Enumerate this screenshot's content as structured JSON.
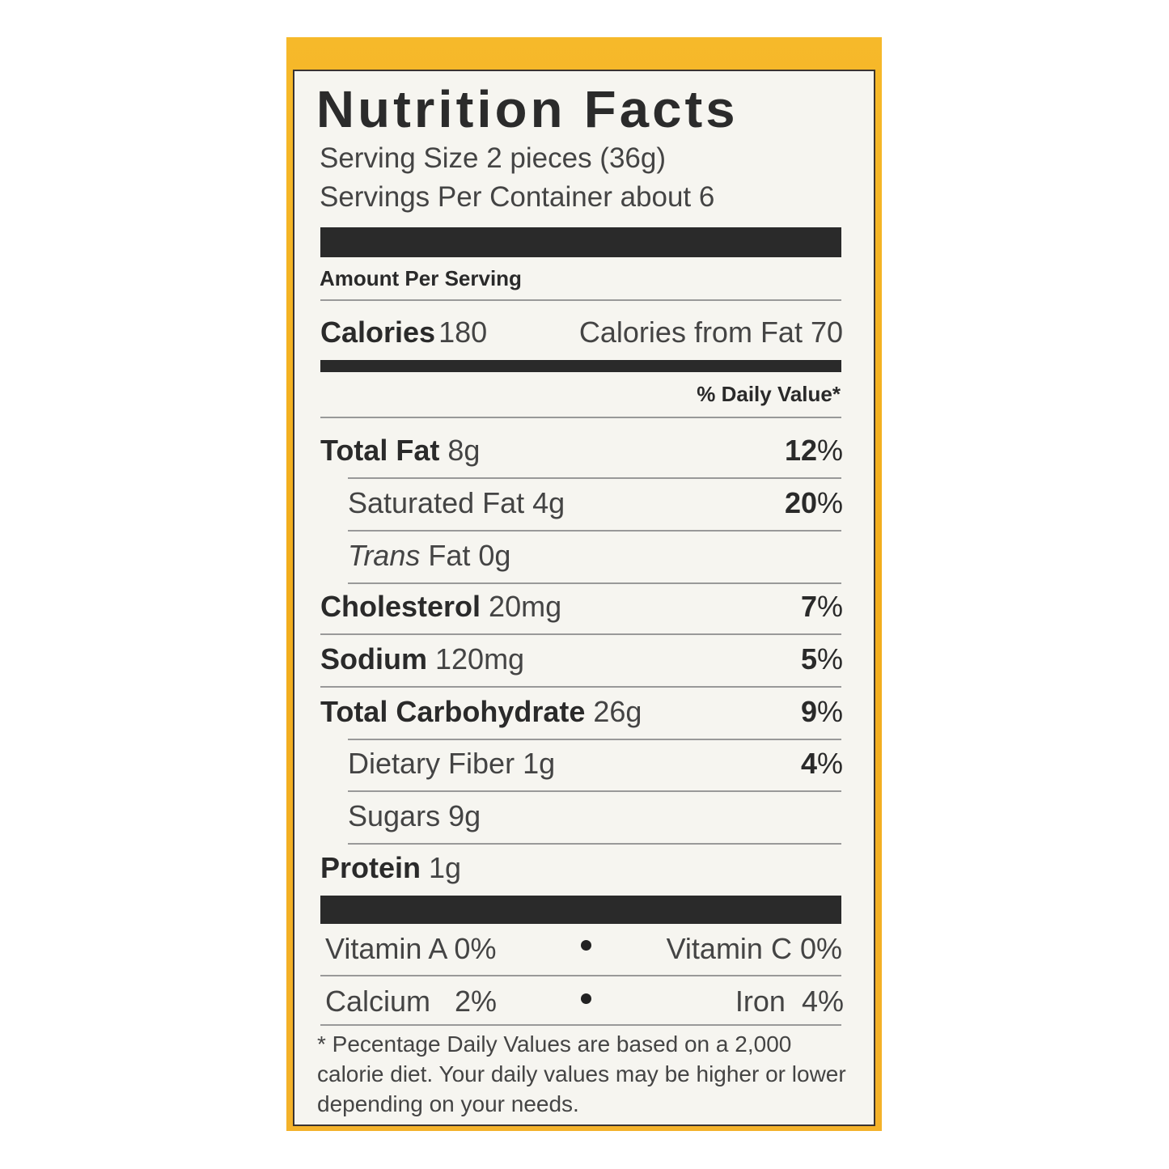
{
  "title": "Nutrition Facts",
  "serving_size": "Serving Size 2 pieces (36g)",
  "servings_per_container": "Servings Per Container about 6",
  "amount_per_serving": "Amount Per Serving",
  "calories": {
    "label": "Calories",
    "value": "180",
    "from_fat": "Calories from Fat 70"
  },
  "daily_value_header": "% Daily Value*",
  "nutrients": [
    {
      "name": "Total Fat",
      "amount": "8g",
      "dv": "12",
      "sub": false
    },
    {
      "name": "Saturated Fat",
      "amount": "4g",
      "dv": "20",
      "sub": true
    },
    {
      "name": "Trans",
      "name_suffix": "Fat",
      "amount": "0g",
      "dv": "",
      "sub": true
    },
    {
      "name": "Cholesterol",
      "amount": "20mg",
      "dv": "7",
      "sub": false
    },
    {
      "name": "Sodium",
      "amount": "120mg",
      "dv": "5",
      "sub": false
    },
    {
      "name": "Total Carbohydrate",
      "amount": "26g",
      "dv": "9",
      "sub": false
    },
    {
      "name": "Dietary Fiber",
      "amount": "1g",
      "dv": "4",
      "sub": true
    },
    {
      "name": "Sugars",
      "amount": "9g",
      "dv": "",
      "sub": true
    },
    {
      "name": "Protein",
      "amount": "1g",
      "dv": "",
      "sub": false
    }
  ],
  "percent_sign": "%",
  "vitamins": [
    {
      "left": "Vitamin A 0%",
      "right": "Vitamin C  0%"
    },
    {
      "left": "Calcium   2%",
      "right": "Iron  4%"
    }
  ],
  "footnote": "* Pecentage Daily Values are based on a 2,000 calorie diet. Your daily values may be higher or lower depending on your needs.",
  "colors": {
    "border": "#f2ad1c",
    "panel": "#f6f5f0",
    "ink": "#2a2a2a"
  }
}
